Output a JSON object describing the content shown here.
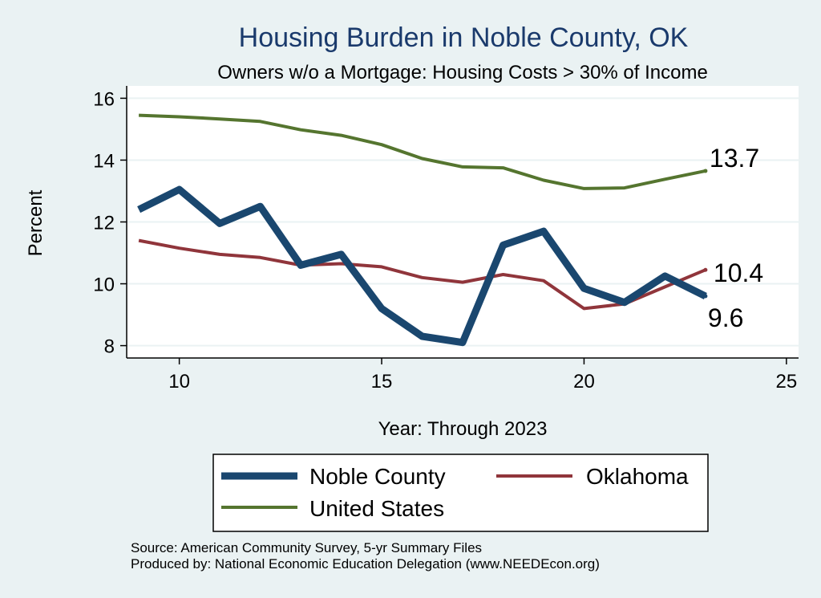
{
  "chart_data": {
    "type": "line",
    "title": "Housing Burden in Noble County, OK",
    "subtitle": "Owners w/o a Mortgage: Housing Costs > 30% of Income",
    "xlabel": "Year: Through 2023",
    "ylabel": "Percent",
    "xlim": [
      8.7,
      25.3
    ],
    "ylim": [
      7.6,
      16.4
    ],
    "xticks": [
      10,
      15,
      20,
      25
    ],
    "yticks": [
      8,
      10,
      12,
      14,
      16
    ],
    "grid": true,
    "legend_position": "bottom",
    "series": [
      {
        "name": "Noble County",
        "color": "#1a476f",
        "x": [
          9,
          10,
          11,
          12,
          13,
          14,
          15,
          16,
          17,
          18,
          19,
          20,
          21,
          22,
          23
        ],
        "values": [
          12.4,
          13.05,
          11.95,
          12.5,
          10.6,
          10.95,
          9.2,
          8.3,
          8.1,
          11.25,
          11.7,
          9.85,
          9.4,
          10.25,
          9.6
        ],
        "end_label": "9.6"
      },
      {
        "name": "Oklahoma",
        "color": "#90353b",
        "x": [
          9,
          10,
          11,
          12,
          13,
          14,
          15,
          16,
          17,
          18,
          19,
          20,
          21,
          22,
          23
        ],
        "values": [
          11.4,
          11.15,
          10.95,
          10.85,
          10.6,
          10.65,
          10.55,
          10.2,
          10.05,
          10.3,
          10.1,
          9.2,
          9.35,
          9.9,
          10.45
        ],
        "end_label": "10.4"
      },
      {
        "name": "United States",
        "color": "#55752f",
        "x": [
          9,
          10,
          11,
          12,
          13,
          14,
          15,
          16,
          17,
          18,
          19,
          20,
          21,
          22,
          23
        ],
        "values": [
          15.45,
          15.4,
          15.33,
          15.25,
          14.98,
          14.8,
          14.5,
          14.05,
          13.78,
          13.75,
          13.35,
          13.08,
          13.1,
          13.38,
          13.65
        ],
        "end_label": "13.7"
      }
    ],
    "source_lines": [
      "Source: American Community Survey, 5-yr Summary Files",
      "Produced by: National Economic Education Delegation (www.NEEDEcon.org)"
    ]
  }
}
